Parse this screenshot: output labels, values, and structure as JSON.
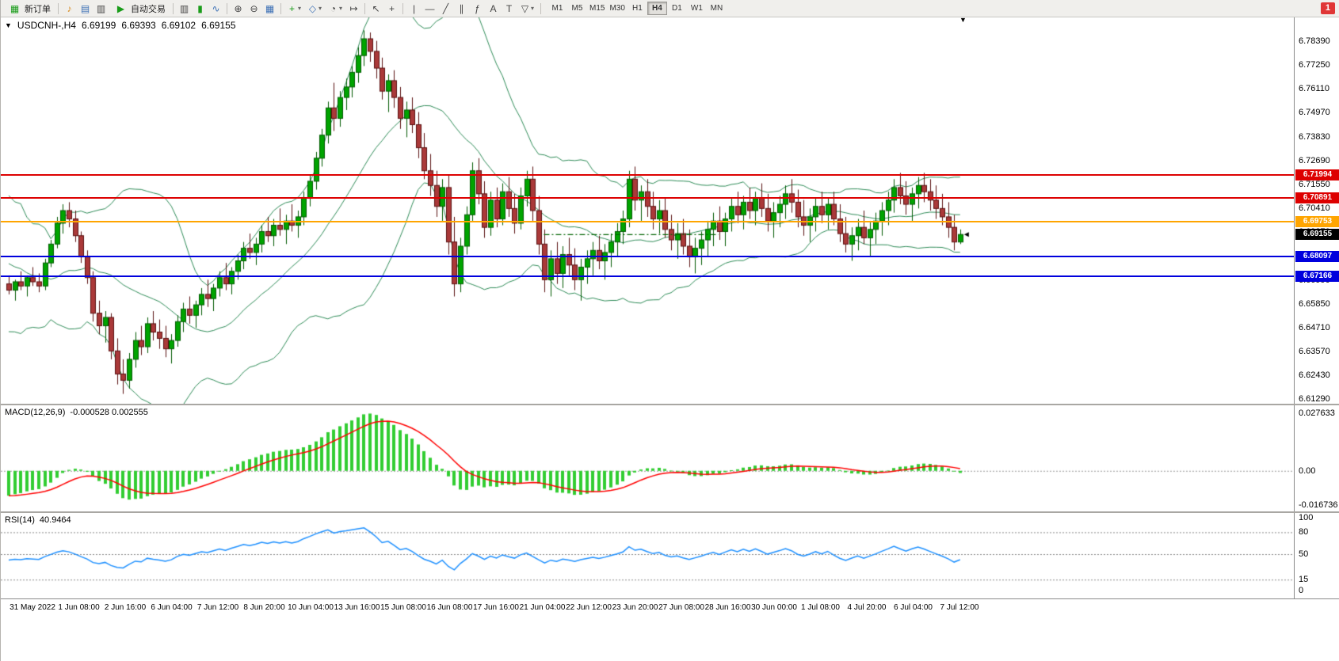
{
  "toolbar": {
    "new_order_label": "新订单",
    "auto_trading_label": "自动交易",
    "timeframes": [
      "M1",
      "M5",
      "M15",
      "M30",
      "H1",
      "H4",
      "D1",
      "W1",
      "MN"
    ],
    "active_timeframe": "H4",
    "notification_count": "1",
    "icons": {
      "new_order": "▦",
      "sound": "♪",
      "profiles": "▤",
      "terminal": "▥",
      "play": "▶",
      "bar_chart": "▥",
      "candlestick": "▮",
      "line_chart": "∿",
      "zoom_in": "⊕",
      "zoom_out": "⊖",
      "tile_windows": "▦",
      "indicators": "+",
      "objects": "◇",
      "periods": "◔",
      "shift": "↦",
      "cursor": "↖",
      "crosshair": "+",
      "vline": "|",
      "hline": "—",
      "trendline": "╱",
      "channel": "∥",
      "fibonacci": "ƒ",
      "text": "A",
      "label": "T",
      "arrows": "▽",
      "caret": "▾"
    }
  },
  "chart": {
    "symbol_title": "USDCNH-,H4",
    "symbol_dropdown": "▼",
    "shift_marker": "▼",
    "ohlc": {
      "open": "6.69199",
      "high": "6.69393",
      "low": "6.69102",
      "close": "6.69155"
    },
    "price_axis_labels": [
      "6.78390",
      "6.77250",
      "6.76110",
      "6.74970",
      "6.73830",
      "6.72690",
      "6.71550",
      "6.70410",
      "6.69270",
      "6.68130",
      "6.66990",
      "6.65850",
      "6.64710",
      "6.63570",
      "6.62430",
      "6.61290"
    ],
    "levels": [
      {
        "label": "6.71994",
        "value": 6.71994,
        "color": "#dd0000",
        "line": true
      },
      {
        "label": "6.70891",
        "value": 6.70891,
        "color": "#dd0000",
        "line": true
      },
      {
        "label": "6.69753",
        "value": 6.69753,
        "color": "#ffa500",
        "line": true
      },
      {
        "label": "6.69155",
        "value": 6.69155,
        "color": "#000000",
        "line": false
      },
      {
        "label": "6.68097",
        "value": 6.68097,
        "color": "#0000dd",
        "line": true
      },
      {
        "label": "6.67166",
        "value": 6.67166,
        "color": "#0000dd",
        "line": true
      }
    ]
  },
  "macd": {
    "name": "MACD(12,26,9)",
    "values": "-0.000528 0.002555",
    "axis_labels": [
      "0.027633",
      "0.00",
      "-0.016736"
    ]
  },
  "rsi": {
    "name": "RSI(14)",
    "value": "40.9464",
    "axis_labels": [
      "100",
      "80",
      "50",
      "15",
      "0"
    ],
    "levels": [
      80,
      50,
      15
    ]
  },
  "time_axis": [
    "31 May 2022",
    "1 Jun 08:00",
    "2 Jun 16:00",
    "6 Jun 04:00",
    "7 Jun 12:00",
    "8 Jun 20:00",
    "10 Jun 04:00",
    "13 Jun 16:00",
    "15 Jun 08:00",
    "16 Jun 08:00",
    "17 Jun 16:00",
    "21 Jun 04:00",
    "22 Jun 12:00",
    "23 Jun 20:00",
    "27 Jun 08:00",
    "28 Jun 16:00",
    "30 Jun 00:00",
    "1 Jul 08:00",
    "4 Jul 20:00",
    "6 Jul 04:00",
    "7 Jul 12:00"
  ],
  "chart_data": {
    "type": "candlestick",
    "symbol": "USDCNH",
    "period": "H4",
    "price_range": [
      6.6108,
      6.7952
    ],
    "macd_range": [
      -0.0195,
      0.0315
    ],
    "colors": {
      "bull": "#00a400",
      "bull_border": "#005a00",
      "bear": "#aa3939",
      "bear_border": "#5a1010",
      "bands": "#2e8b57",
      "macd_hist": "#32cd32",
      "macd_signal": "#ff0000",
      "rsi": "#1e90ff"
    },
    "dash_segment": {
      "price": 6.6915,
      "from": 0.42,
      "to": 0.555,
      "color": "#006400"
    },
    "pre_closes": [
      6.72,
      6.7,
      6.685,
      6.71,
      6.695,
      6.672,
      6.69,
      6.705,
      6.68,
      6.66,
      6.676,
      6.692,
      6.67,
      6.652,
      6.665,
      6.68,
      6.662,
      6.655,
      6.672,
      6.668
    ],
    "candles": [
      [
        6.668,
        6.672,
        6.663,
        6.665
      ],
      [
        6.665,
        6.67,
        6.66,
        6.669
      ],
      [
        6.669,
        6.674,
        6.665,
        6.667
      ],
      [
        6.667,
        6.672,
        6.662,
        6.671
      ],
      [
        6.671,
        6.676,
        6.667,
        6.669
      ],
      [
        6.669,
        6.673,
        6.664,
        6.667
      ],
      [
        6.667,
        6.68,
        6.665,
        6.678
      ],
      [
        6.678,
        6.689,
        6.676,
        6.687
      ],
      [
        6.687,
        6.7,
        6.685,
        6.697
      ],
      [
        6.697,
        6.706,
        6.692,
        6.703
      ],
      [
        6.703,
        6.707,
        6.695,
        6.699
      ],
      [
        6.699,
        6.703,
        6.688,
        6.691
      ],
      [
        6.691,
        6.693,
        6.678,
        6.681
      ],
      [
        6.681,
        6.684,
        6.668,
        6.671
      ],
      [
        6.671,
        6.674,
        6.65,
        6.654
      ],
      [
        6.654,
        6.66,
        6.644,
        6.648
      ],
      [
        6.648,
        6.655,
        6.64,
        6.652
      ],
      [
        6.652,
        6.654,
        6.632,
        6.636
      ],
      [
        6.636,
        6.642,
        6.62,
        6.625
      ],
      [
        6.625,
        6.632,
        6.6155,
        6.622
      ],
      [
        6.622,
        6.635,
        6.618,
        6.632
      ],
      [
        6.632,
        6.645,
        6.628,
        6.641
      ],
      [
        6.641,
        6.648,
        6.634,
        6.638
      ],
      [
        6.638,
        6.652,
        6.635,
        6.649
      ],
      [
        6.649,
        6.655,
        6.641,
        6.645
      ],
      [
        6.645,
        6.651,
        6.637,
        6.642
      ],
      [
        6.642,
        6.648,
        6.633,
        6.637
      ],
      [
        6.637,
        6.644,
        6.63,
        6.641
      ],
      [
        6.641,
        6.653,
        6.638,
        6.65
      ],
      [
        6.65,
        6.659,
        6.645,
        6.656
      ],
      [
        6.656,
        6.662,
        6.649,
        6.653
      ],
      [
        6.653,
        6.66,
        6.647,
        6.658
      ],
      [
        6.658,
        6.666,
        6.653,
        6.663
      ],
      [
        6.663,
        6.67,
        6.657,
        6.661
      ],
      [
        6.661,
        6.668,
        6.655,
        6.666
      ],
      [
        6.666,
        6.674,
        6.662,
        6.671
      ],
      [
        6.671,
        6.678,
        6.665,
        6.668
      ],
      [
        6.668,
        6.676,
        6.663,
        6.674
      ],
      [
        6.674,
        6.682,
        6.67,
        6.679
      ],
      [
        6.679,
        6.688,
        6.675,
        6.685
      ],
      [
        6.685,
        6.692,
        6.68,
        6.683
      ],
      [
        6.683,
        6.69,
        6.677,
        6.687
      ],
      [
        6.687,
        6.696,
        6.683,
        6.693
      ],
      [
        6.693,
        6.7,
        6.688,
        6.691
      ],
      [
        6.691,
        6.699,
        6.686,
        6.696
      ],
      [
        6.696,
        6.704,
        6.691,
        6.694
      ],
      [
        6.694,
        6.701,
        6.687,
        6.698
      ],
      [
        6.698,
        6.706,
        6.693,
        6.696
      ],
      [
        6.696,
        6.703,
        6.69,
        6.7
      ],
      [
        6.7,
        6.712,
        6.696,
        6.709
      ],
      [
        6.709,
        6.72,
        6.705,
        6.717
      ],
      [
        6.717,
        6.731,
        6.713,
        6.728
      ],
      [
        6.728,
        6.742,
        6.724,
        6.739
      ],
      [
        6.739,
        6.755,
        6.735,
        6.752
      ],
      [
        6.752,
        6.764,
        6.741,
        6.747
      ],
      [
        6.747,
        6.76,
        6.743,
        6.757
      ],
      [
        6.757,
        6.766,
        6.751,
        6.762
      ],
      [
        6.762,
        6.772,
        6.757,
        6.769
      ],
      [
        6.769,
        6.781,
        6.764,
        6.777
      ],
      [
        6.777,
        6.789,
        6.772,
        6.785
      ],
      [
        6.785,
        6.788,
        6.774,
        6.779
      ],
      [
        6.779,
        6.784,
        6.766,
        6.771
      ],
      [
        6.771,
        6.776,
        6.756,
        6.76
      ],
      [
        6.76,
        6.768,
        6.75,
        6.765
      ],
      [
        6.765,
        6.77,
        6.752,
        6.757
      ],
      [
        6.757,
        6.762,
        6.742,
        6.747
      ],
      [
        6.747,
        6.755,
        6.738,
        6.751
      ],
      [
        6.751,
        6.757,
        6.74,
        6.744
      ],
      [
        6.744,
        6.75,
        6.728,
        6.733
      ],
      [
        6.733,
        6.74,
        6.718,
        6.722
      ],
      [
        6.722,
        6.73,
        6.71,
        6.715
      ],
      [
        6.715,
        6.722,
        6.7,
        6.705
      ],
      [
        6.705,
        6.718,
        6.698,
        6.714
      ],
      [
        6.714,
        6.72,
        6.682,
        6.688
      ],
      [
        6.688,
        6.7,
        6.662,
        6.668
      ],
      [
        6.668,
        6.69,
        6.664,
        6.686
      ],
      [
        6.686,
        6.705,
        6.682,
        6.701
      ],
      [
        6.701,
        6.726,
        6.698,
        6.722
      ],
      [
        6.722,
        6.728,
        6.706,
        6.711
      ],
      [
        6.711,
        6.717,
        6.69,
        6.695
      ],
      [
        6.695,
        6.712,
        6.691,
        6.708
      ],
      [
        6.708,
        6.714,
        6.695,
        6.699
      ],
      [
        6.699,
        6.716,
        6.696,
        6.712
      ],
      [
        6.712,
        6.719,
        6.7,
        6.704
      ],
      [
        6.704,
        6.711,
        6.692,
        6.697
      ],
      [
        6.697,
        6.714,
        6.694,
        6.71
      ],
      [
        6.71,
        6.722,
        6.705,
        6.718
      ],
      [
        6.718,
        6.724,
        6.698,
        6.703
      ],
      [
        6.703,
        6.71,
        6.682,
        6.687
      ],
      [
        6.687,
        6.694,
        6.664,
        6.67
      ],
      [
        6.67,
        6.684,
        6.662,
        6.68
      ],
      [
        6.68,
        6.688,
        6.668,
        6.673
      ],
      [
        6.673,
        6.686,
        6.666,
        6.682
      ],
      [
        6.682,
        6.69,
        6.672,
        6.677
      ],
      [
        6.677,
        6.685,
        6.665,
        6.67
      ],
      [
        6.67,
        6.68,
        6.66,
        6.676
      ],
      [
        6.676,
        6.684,
        6.668,
        6.68
      ],
      [
        6.68,
        6.688,
        6.672,
        6.684
      ],
      [
        6.684,
        6.691,
        6.675,
        6.679
      ],
      [
        6.679,
        6.687,
        6.67,
        6.683
      ],
      [
        6.683,
        6.692,
        6.676,
        6.688
      ],
      [
        6.688,
        6.697,
        6.681,
        6.693
      ],
      [
        6.693,
        6.703,
        6.687,
        6.699
      ],
      [
        6.699,
        6.722,
        6.695,
        6.718
      ],
      [
        6.718,
        6.724,
        6.703,
        6.708
      ],
      [
        6.708,
        6.715,
        6.698,
        6.712
      ],
      [
        6.712,
        6.718,
        6.7,
        6.705
      ],
      [
        6.705,
        6.712,
        6.694,
        6.699
      ],
      [
        6.699,
        6.708,
        6.692,
        6.703
      ],
      [
        6.703,
        6.709,
        6.69,
        6.694
      ],
      [
        6.694,
        6.701,
        6.684,
        6.689
      ],
      [
        6.689,
        6.697,
        6.68,
        6.692
      ],
      [
        6.692,
        6.699,
        6.682,
        6.686
      ],
      [
        6.686,
        6.694,
        6.676,
        6.681
      ],
      [
        6.681,
        6.69,
        6.673,
        6.685
      ],
      [
        6.685,
        6.693,
        6.677,
        6.689
      ],
      [
        6.689,
        6.698,
        6.681,
        6.694
      ],
      [
        6.694,
        6.702,
        6.686,
        6.698
      ],
      [
        6.698,
        6.705,
        6.689,
        6.693
      ],
      [
        6.693,
        6.702,
        6.686,
        6.699
      ],
      [
        6.699,
        6.709,
        6.693,
        6.705
      ],
      [
        6.705,
        6.712,
        6.697,
        6.701
      ],
      [
        6.701,
        6.71,
        6.694,
        6.707
      ],
      [
        6.707,
        6.714,
        6.699,
        6.703
      ],
      [
        6.703,
        6.712,
        6.696,
        6.709
      ],
      [
        6.709,
        6.716,
        6.7,
        6.704
      ],
      [
        6.704,
        6.711,
        6.693,
        6.698
      ],
      [
        6.698,
        6.707,
        6.69,
        6.702
      ],
      [
        6.702,
        6.71,
        6.695,
        6.706
      ],
      [
        6.706,
        6.715,
        6.699,
        6.711
      ],
      [
        6.711,
        6.718,
        6.702,
        6.707
      ],
      [
        6.707,
        6.713,
        6.695,
        6.7
      ],
      [
        6.7,
        6.708,
        6.691,
        6.696
      ],
      [
        6.696,
        6.704,
        6.688,
        6.7
      ],
      [
        6.7,
        6.709,
        6.693,
        6.705
      ],
      [
        6.705,
        6.712,
        6.697,
        6.701
      ],
      [
        6.701,
        6.709,
        6.694,
        6.706
      ],
      [
        6.706,
        6.712,
        6.696,
        6.699
      ],
      [
        6.699,
        6.706,
        6.688,
        6.692
      ],
      [
        6.692,
        6.7,
        6.683,
        6.687
      ],
      [
        6.687,
        6.695,
        6.679,
        6.691
      ],
      [
        6.691,
        6.699,
        6.684,
        6.695
      ],
      [
        6.695,
        6.703,
        6.687,
        6.69
      ],
      [
        6.69,
        6.698,
        6.681,
        6.694
      ],
      [
        6.694,
        6.702,
        6.687,
        6.698
      ],
      [
        6.698,
        6.707,
        6.691,
        6.703
      ],
      [
        6.703,
        6.712,
        6.696,
        6.708
      ],
      [
        6.708,
        6.718,
        6.702,
        6.714
      ],
      [
        6.714,
        6.721,
        6.706,
        6.71
      ],
      [
        6.71,
        6.717,
        6.701,
        6.706
      ],
      [
        6.706,
        6.714,
        6.698,
        6.711
      ],
      [
        6.711,
        6.719,
        6.704,
        6.715
      ],
      [
        6.715,
        6.721,
        6.707,
        6.712
      ],
      [
        6.712,
        6.718,
        6.703,
        6.708
      ],
      [
        6.708,
        6.715,
        6.699,
        6.704
      ],
      [
        6.704,
        6.711,
        6.696,
        6.7
      ],
      [
        6.7,
        6.707,
        6.69,
        6.695
      ],
      [
        6.695,
        6.701,
        6.684,
        6.688
      ],
      [
        6.688,
        6.694,
        6.687,
        6.6916
      ]
    ]
  }
}
